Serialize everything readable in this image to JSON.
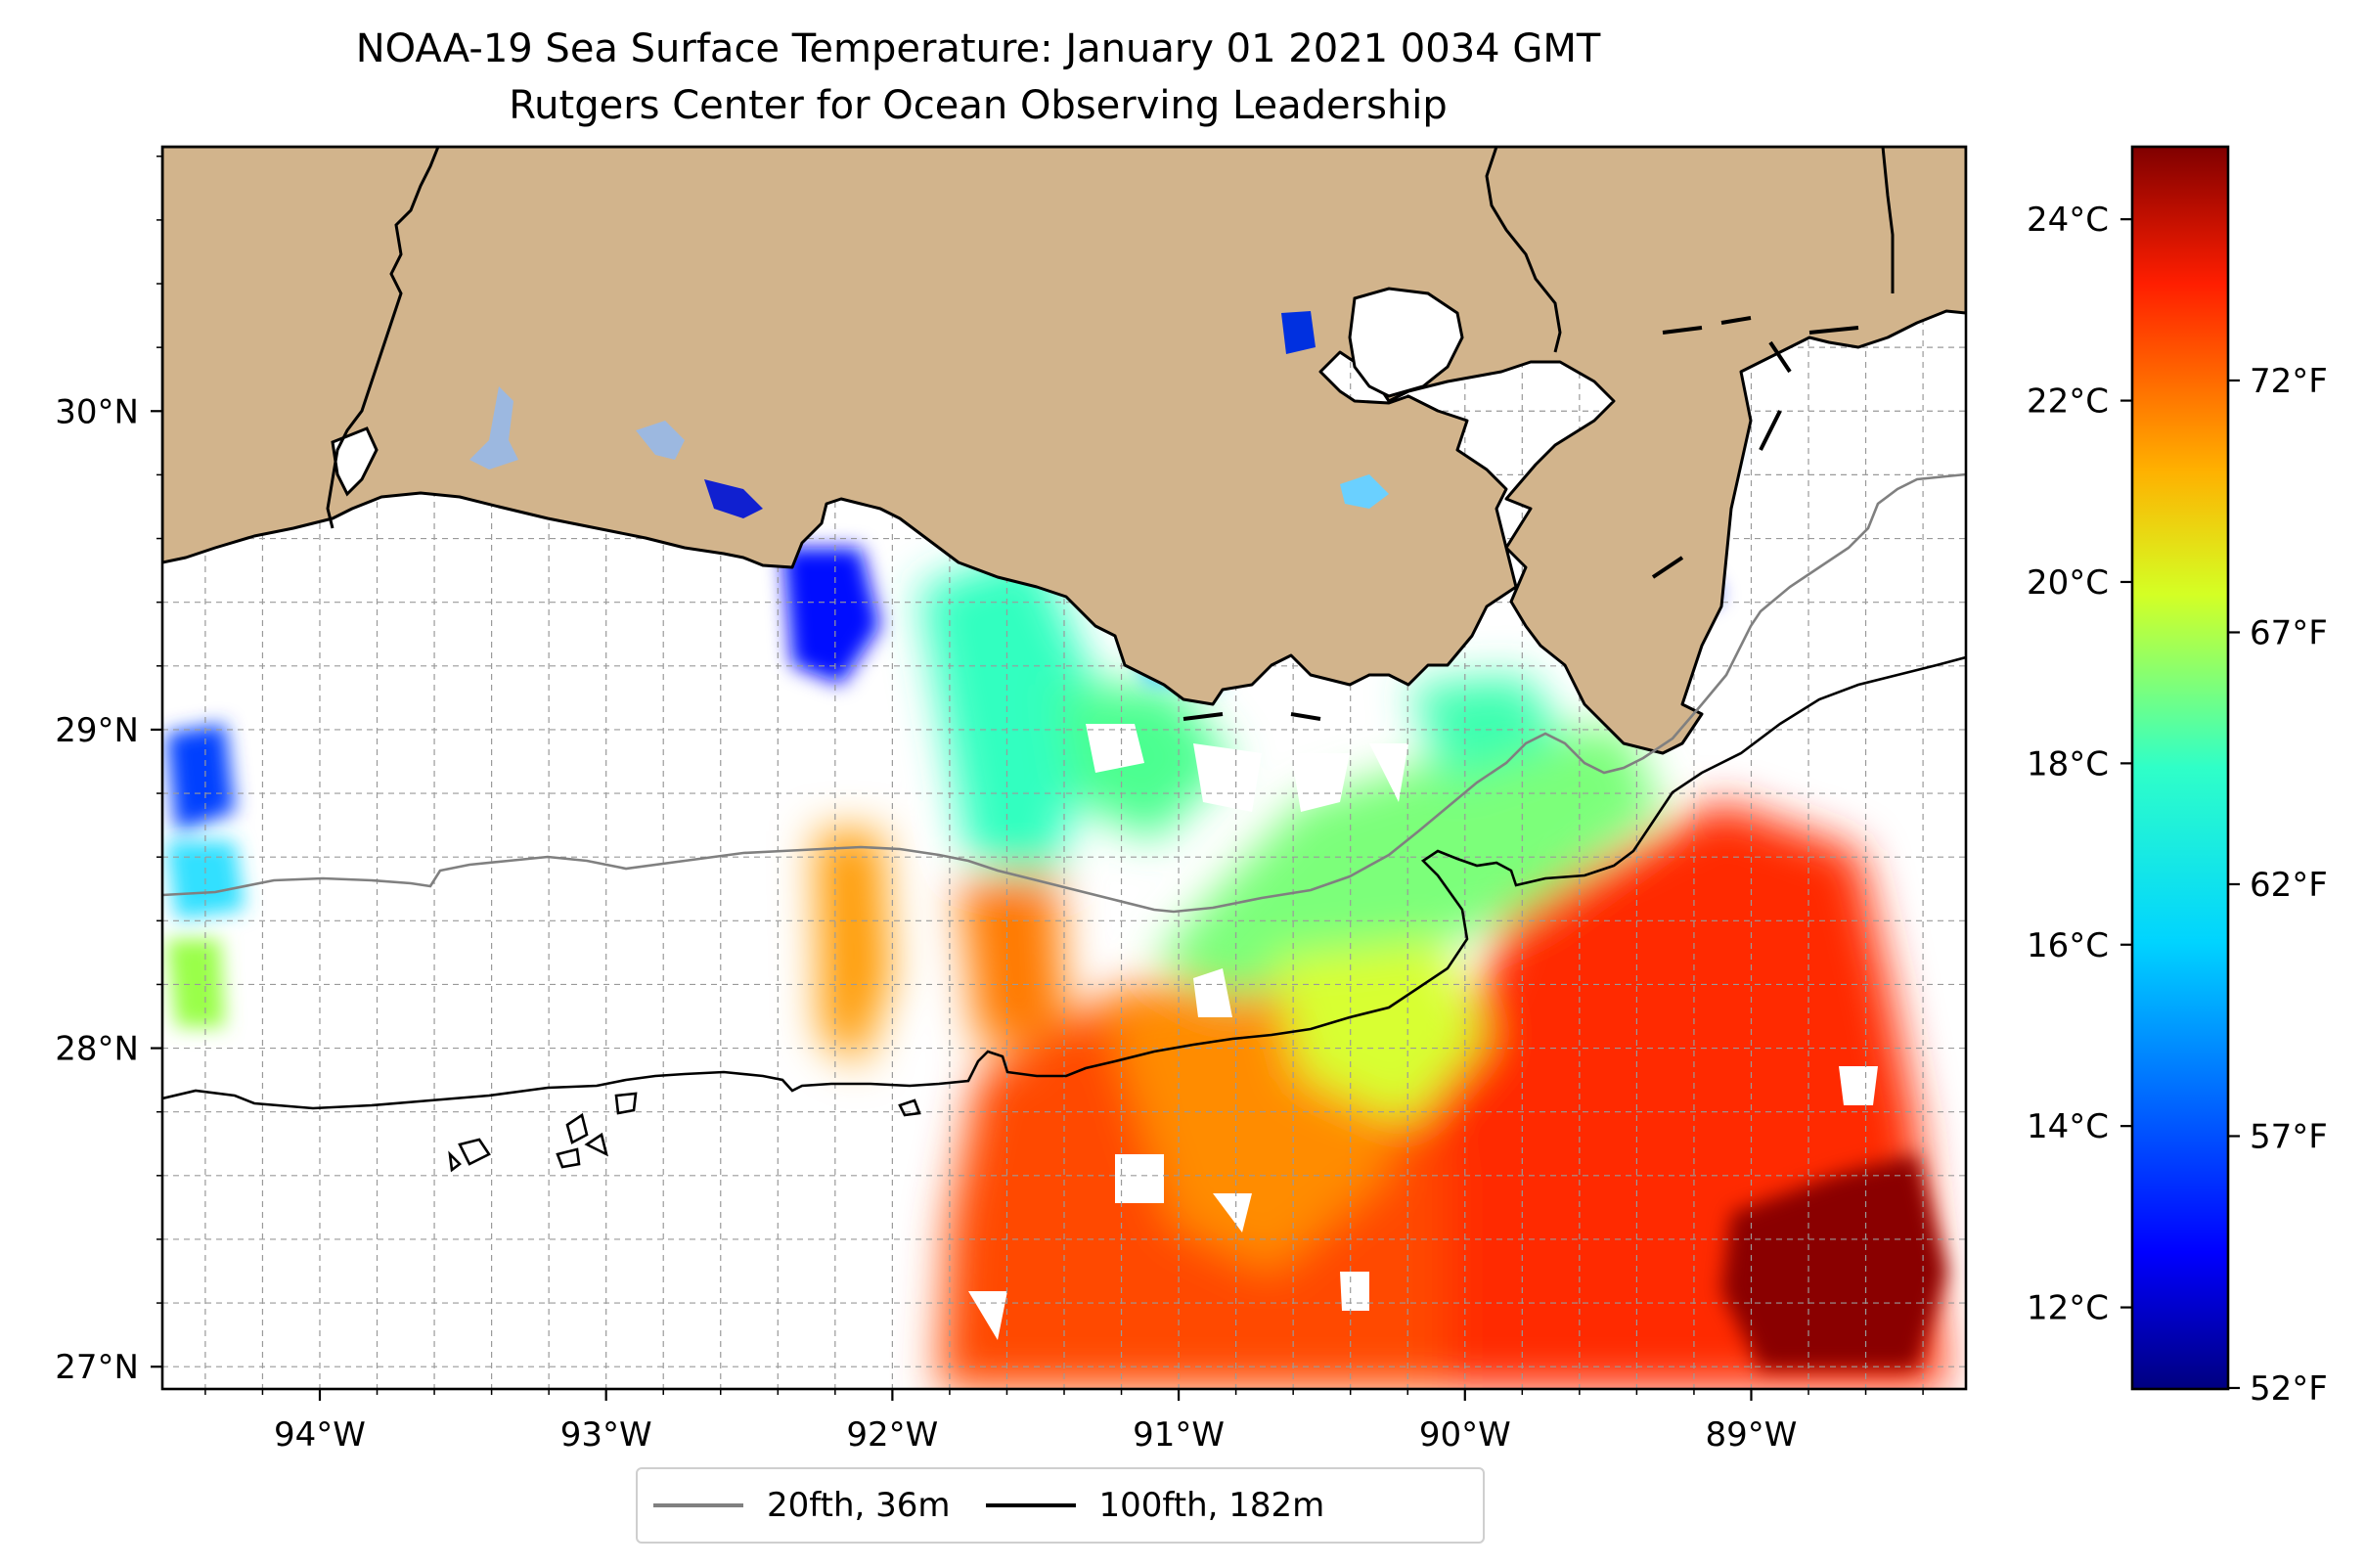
{
  "title": {
    "line1": "NOAA-19 Sea Surface Temperature: January 01 2021 0034 GMT",
    "line2": "Rutgers Center for Ocean Observing Leadership"
  },
  "map": {
    "lon_range": [
      -94.55,
      -88.25
    ],
    "lat_range": [
      26.93,
      30.83
    ],
    "lon_ticks": [
      {
        "value": -94,
        "label": "94°W"
      },
      {
        "value": -93,
        "label": "93°W"
      },
      {
        "value": -92,
        "label": "92°W"
      },
      {
        "value": -91,
        "label": "91°W"
      },
      {
        "value": -90,
        "label": "90°W"
      },
      {
        "value": -89,
        "label": "89°W"
      }
    ],
    "lat_ticks": [
      {
        "value": 27,
        "label": "27°N"
      },
      {
        "value": 28,
        "label": "28°N"
      },
      {
        "value": 29,
        "label": "29°N"
      },
      {
        "value": 30,
        "label": "30°N"
      }
    ],
    "grid": true,
    "land_color": "#d2b48c",
    "colormap": "jet"
  },
  "colorbar": {
    "celsius_range": [
      11.1,
      24.8
    ],
    "celsius_ticks": [
      {
        "value": 12,
        "label": "12°C"
      },
      {
        "value": 14,
        "label": "14°C"
      },
      {
        "value": 16,
        "label": "16°C"
      },
      {
        "value": 18,
        "label": "18°C"
      },
      {
        "value": 20,
        "label": "20°C"
      },
      {
        "value": 22,
        "label": "22°C"
      },
      {
        "value": 24,
        "label": "24°C"
      }
    ],
    "fahrenheit_ticks": [
      {
        "value": 52,
        "label": "52°F"
      },
      {
        "value": 57,
        "label": "57°F"
      },
      {
        "value": 62,
        "label": "62°F"
      },
      {
        "value": 67,
        "label": "67°F"
      },
      {
        "value": 72,
        "label": "72°F"
      }
    ]
  },
  "legend": {
    "items": [
      {
        "label": "20fth, 36m",
        "color": "#808080"
      },
      {
        "label": "100fth, 182m",
        "color": "#000000"
      }
    ]
  }
}
